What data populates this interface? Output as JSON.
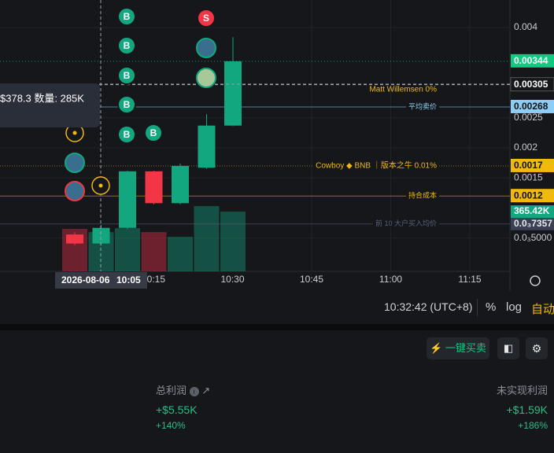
{
  "chart": {
    "type": "candlestick",
    "open": [
      0.00056,
      0.00041,
      0.00067,
      0.00161,
      0.00108,
      0.00167,
      0.00237
    ],
    "high": [
      0.0006,
      0.00072,
      0.00162,
      0.00162,
      0.00174,
      0.00256,
      0.00384
    ],
    "low": [
      0.00038,
      0.00038,
      0.00065,
      0.00106,
      0.00106,
      0.00165,
      0.00236
    ],
    "close": [
      0.00041,
      0.00067,
      0.00161,
      0.00108,
      0.0017,
      0.00237,
      0.00344
    ],
    "volumes": [
      260000,
      240000,
      264000,
      240000,
      211000,
      399000,
      365420
    ],
    "ylim": [
      -5.23e-05,
      0.0044575
    ],
    "vlim": [
      0,
      1660000
    ],
    "yticks": [
      0.004,
      0.0025,
      0.002,
      0.0015,
      {
        "value": 0.0005,
        "label": "0.0₃5000"
      }
    ],
    "xticks": [
      "10:15",
      "10:30",
      "10:45",
      "11:00",
      "11:15"
    ],
    "price_lines": [
      {
        "price": 0.00344,
        "color": "#0ecb81"
      },
      {
        "price": 0.00305,
        "note": "Matt Willemsen 0%",
        "color": "#e6e8ea"
      },
      {
        "price": 0.00268,
        "note": "平均卖价",
        "color": "#8ecdf5"
      },
      {
        "price": 0.0017,
        "note": "Cowboy ◆ BNB ｜版本之牛 0.01%",
        "color": "#f0b90b"
      },
      {
        "price": 0.0012,
        "note": "持合成本",
        "color": "#f0b90b"
      },
      {
        "price": {
          "value": 0.0007357,
          "label": "0.0₃7357"
        },
        "note": "前 10 大户买入均价",
        "color": "#5b6178"
      }
    ],
    "volume_tag": {
      "value": 365420,
      "label": "365.42K"
    },
    "crosshair": {
      "date": "2026-08-06",
      "time": "10:05"
    },
    "tooltip": "$378.3 数量: 285K",
    "markers": [
      "B",
      "B",
      "B",
      "B",
      "B",
      "B",
      "S"
    ]
  },
  "toolbar": {
    "clock": "10:32:42 (UTC+8)",
    "percent": "%",
    "log": "log",
    "auto": "自动"
  },
  "panel": {
    "quick_trade": "一键买卖",
    "total_profit": {
      "label": "总利润",
      "value": "+$5.55K",
      "pct": "+140%"
    },
    "unrealized": {
      "label": "未实现利润",
      "value": "+$1.59K",
      "pct": "+186%"
    }
  }
}
